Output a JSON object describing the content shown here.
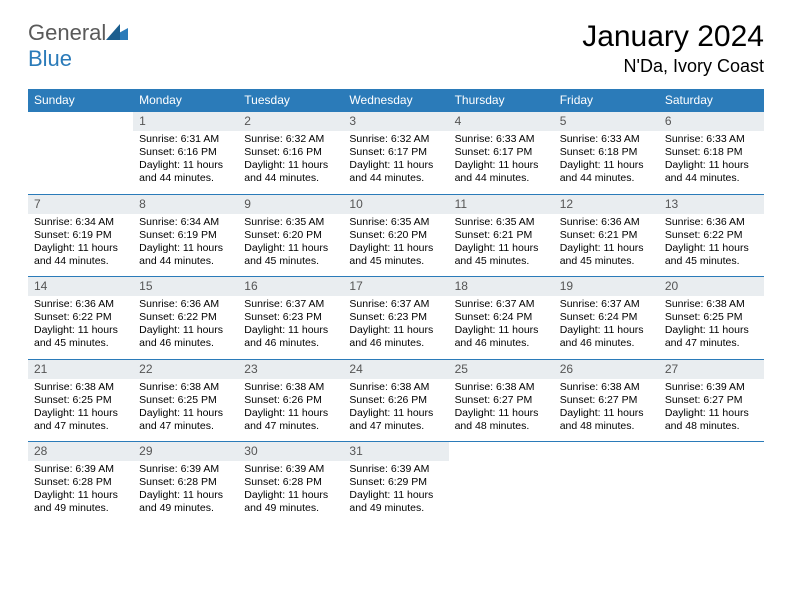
{
  "brand": {
    "name_part1": "General",
    "name_part2": "Blue"
  },
  "title": "January 2024",
  "location": "N'Da, Ivory Coast",
  "colors": {
    "header_bg": "#2b7bb9",
    "daynum_bg": "#e9edf0",
    "text": "#000000",
    "logo_gray": "#5a5a5a"
  },
  "weekdays": [
    "Sunday",
    "Monday",
    "Tuesday",
    "Wednesday",
    "Thursday",
    "Friday",
    "Saturday"
  ],
  "weeks": [
    [
      {
        "n": "",
        "sr": "",
        "ss": "",
        "dl": ""
      },
      {
        "n": "1",
        "sr": "Sunrise: 6:31 AM",
        "ss": "Sunset: 6:16 PM",
        "dl": "Daylight: 11 hours and 44 minutes."
      },
      {
        "n": "2",
        "sr": "Sunrise: 6:32 AM",
        "ss": "Sunset: 6:16 PM",
        "dl": "Daylight: 11 hours and 44 minutes."
      },
      {
        "n": "3",
        "sr": "Sunrise: 6:32 AM",
        "ss": "Sunset: 6:17 PM",
        "dl": "Daylight: 11 hours and 44 minutes."
      },
      {
        "n": "4",
        "sr": "Sunrise: 6:33 AM",
        "ss": "Sunset: 6:17 PM",
        "dl": "Daylight: 11 hours and 44 minutes."
      },
      {
        "n": "5",
        "sr": "Sunrise: 6:33 AM",
        "ss": "Sunset: 6:18 PM",
        "dl": "Daylight: 11 hours and 44 minutes."
      },
      {
        "n": "6",
        "sr": "Sunrise: 6:33 AM",
        "ss": "Sunset: 6:18 PM",
        "dl": "Daylight: 11 hours and 44 minutes."
      }
    ],
    [
      {
        "n": "7",
        "sr": "Sunrise: 6:34 AM",
        "ss": "Sunset: 6:19 PM",
        "dl": "Daylight: 11 hours and 44 minutes."
      },
      {
        "n": "8",
        "sr": "Sunrise: 6:34 AM",
        "ss": "Sunset: 6:19 PM",
        "dl": "Daylight: 11 hours and 44 minutes."
      },
      {
        "n": "9",
        "sr": "Sunrise: 6:35 AM",
        "ss": "Sunset: 6:20 PM",
        "dl": "Daylight: 11 hours and 45 minutes."
      },
      {
        "n": "10",
        "sr": "Sunrise: 6:35 AM",
        "ss": "Sunset: 6:20 PM",
        "dl": "Daylight: 11 hours and 45 minutes."
      },
      {
        "n": "11",
        "sr": "Sunrise: 6:35 AM",
        "ss": "Sunset: 6:21 PM",
        "dl": "Daylight: 11 hours and 45 minutes."
      },
      {
        "n": "12",
        "sr": "Sunrise: 6:36 AM",
        "ss": "Sunset: 6:21 PM",
        "dl": "Daylight: 11 hours and 45 minutes."
      },
      {
        "n": "13",
        "sr": "Sunrise: 6:36 AM",
        "ss": "Sunset: 6:22 PM",
        "dl": "Daylight: 11 hours and 45 minutes."
      }
    ],
    [
      {
        "n": "14",
        "sr": "Sunrise: 6:36 AM",
        "ss": "Sunset: 6:22 PM",
        "dl": "Daylight: 11 hours and 45 minutes."
      },
      {
        "n": "15",
        "sr": "Sunrise: 6:36 AM",
        "ss": "Sunset: 6:22 PM",
        "dl": "Daylight: 11 hours and 46 minutes."
      },
      {
        "n": "16",
        "sr": "Sunrise: 6:37 AM",
        "ss": "Sunset: 6:23 PM",
        "dl": "Daylight: 11 hours and 46 minutes."
      },
      {
        "n": "17",
        "sr": "Sunrise: 6:37 AM",
        "ss": "Sunset: 6:23 PM",
        "dl": "Daylight: 11 hours and 46 minutes."
      },
      {
        "n": "18",
        "sr": "Sunrise: 6:37 AM",
        "ss": "Sunset: 6:24 PM",
        "dl": "Daylight: 11 hours and 46 minutes."
      },
      {
        "n": "19",
        "sr": "Sunrise: 6:37 AM",
        "ss": "Sunset: 6:24 PM",
        "dl": "Daylight: 11 hours and 46 minutes."
      },
      {
        "n": "20",
        "sr": "Sunrise: 6:38 AM",
        "ss": "Sunset: 6:25 PM",
        "dl": "Daylight: 11 hours and 47 minutes."
      }
    ],
    [
      {
        "n": "21",
        "sr": "Sunrise: 6:38 AM",
        "ss": "Sunset: 6:25 PM",
        "dl": "Daylight: 11 hours and 47 minutes."
      },
      {
        "n": "22",
        "sr": "Sunrise: 6:38 AM",
        "ss": "Sunset: 6:25 PM",
        "dl": "Daylight: 11 hours and 47 minutes."
      },
      {
        "n": "23",
        "sr": "Sunrise: 6:38 AM",
        "ss": "Sunset: 6:26 PM",
        "dl": "Daylight: 11 hours and 47 minutes."
      },
      {
        "n": "24",
        "sr": "Sunrise: 6:38 AM",
        "ss": "Sunset: 6:26 PM",
        "dl": "Daylight: 11 hours and 47 minutes."
      },
      {
        "n": "25",
        "sr": "Sunrise: 6:38 AM",
        "ss": "Sunset: 6:27 PM",
        "dl": "Daylight: 11 hours and 48 minutes."
      },
      {
        "n": "26",
        "sr": "Sunrise: 6:38 AM",
        "ss": "Sunset: 6:27 PM",
        "dl": "Daylight: 11 hours and 48 minutes."
      },
      {
        "n": "27",
        "sr": "Sunrise: 6:39 AM",
        "ss": "Sunset: 6:27 PM",
        "dl": "Daylight: 11 hours and 48 minutes."
      }
    ],
    [
      {
        "n": "28",
        "sr": "Sunrise: 6:39 AM",
        "ss": "Sunset: 6:28 PM",
        "dl": "Daylight: 11 hours and 49 minutes."
      },
      {
        "n": "29",
        "sr": "Sunrise: 6:39 AM",
        "ss": "Sunset: 6:28 PM",
        "dl": "Daylight: 11 hours and 49 minutes."
      },
      {
        "n": "30",
        "sr": "Sunrise: 6:39 AM",
        "ss": "Sunset: 6:28 PM",
        "dl": "Daylight: 11 hours and 49 minutes."
      },
      {
        "n": "31",
        "sr": "Sunrise: 6:39 AM",
        "ss": "Sunset: 6:29 PM",
        "dl": "Daylight: 11 hours and 49 minutes."
      },
      {
        "n": "",
        "sr": "",
        "ss": "",
        "dl": ""
      },
      {
        "n": "",
        "sr": "",
        "ss": "",
        "dl": ""
      },
      {
        "n": "",
        "sr": "",
        "ss": "",
        "dl": ""
      }
    ]
  ]
}
